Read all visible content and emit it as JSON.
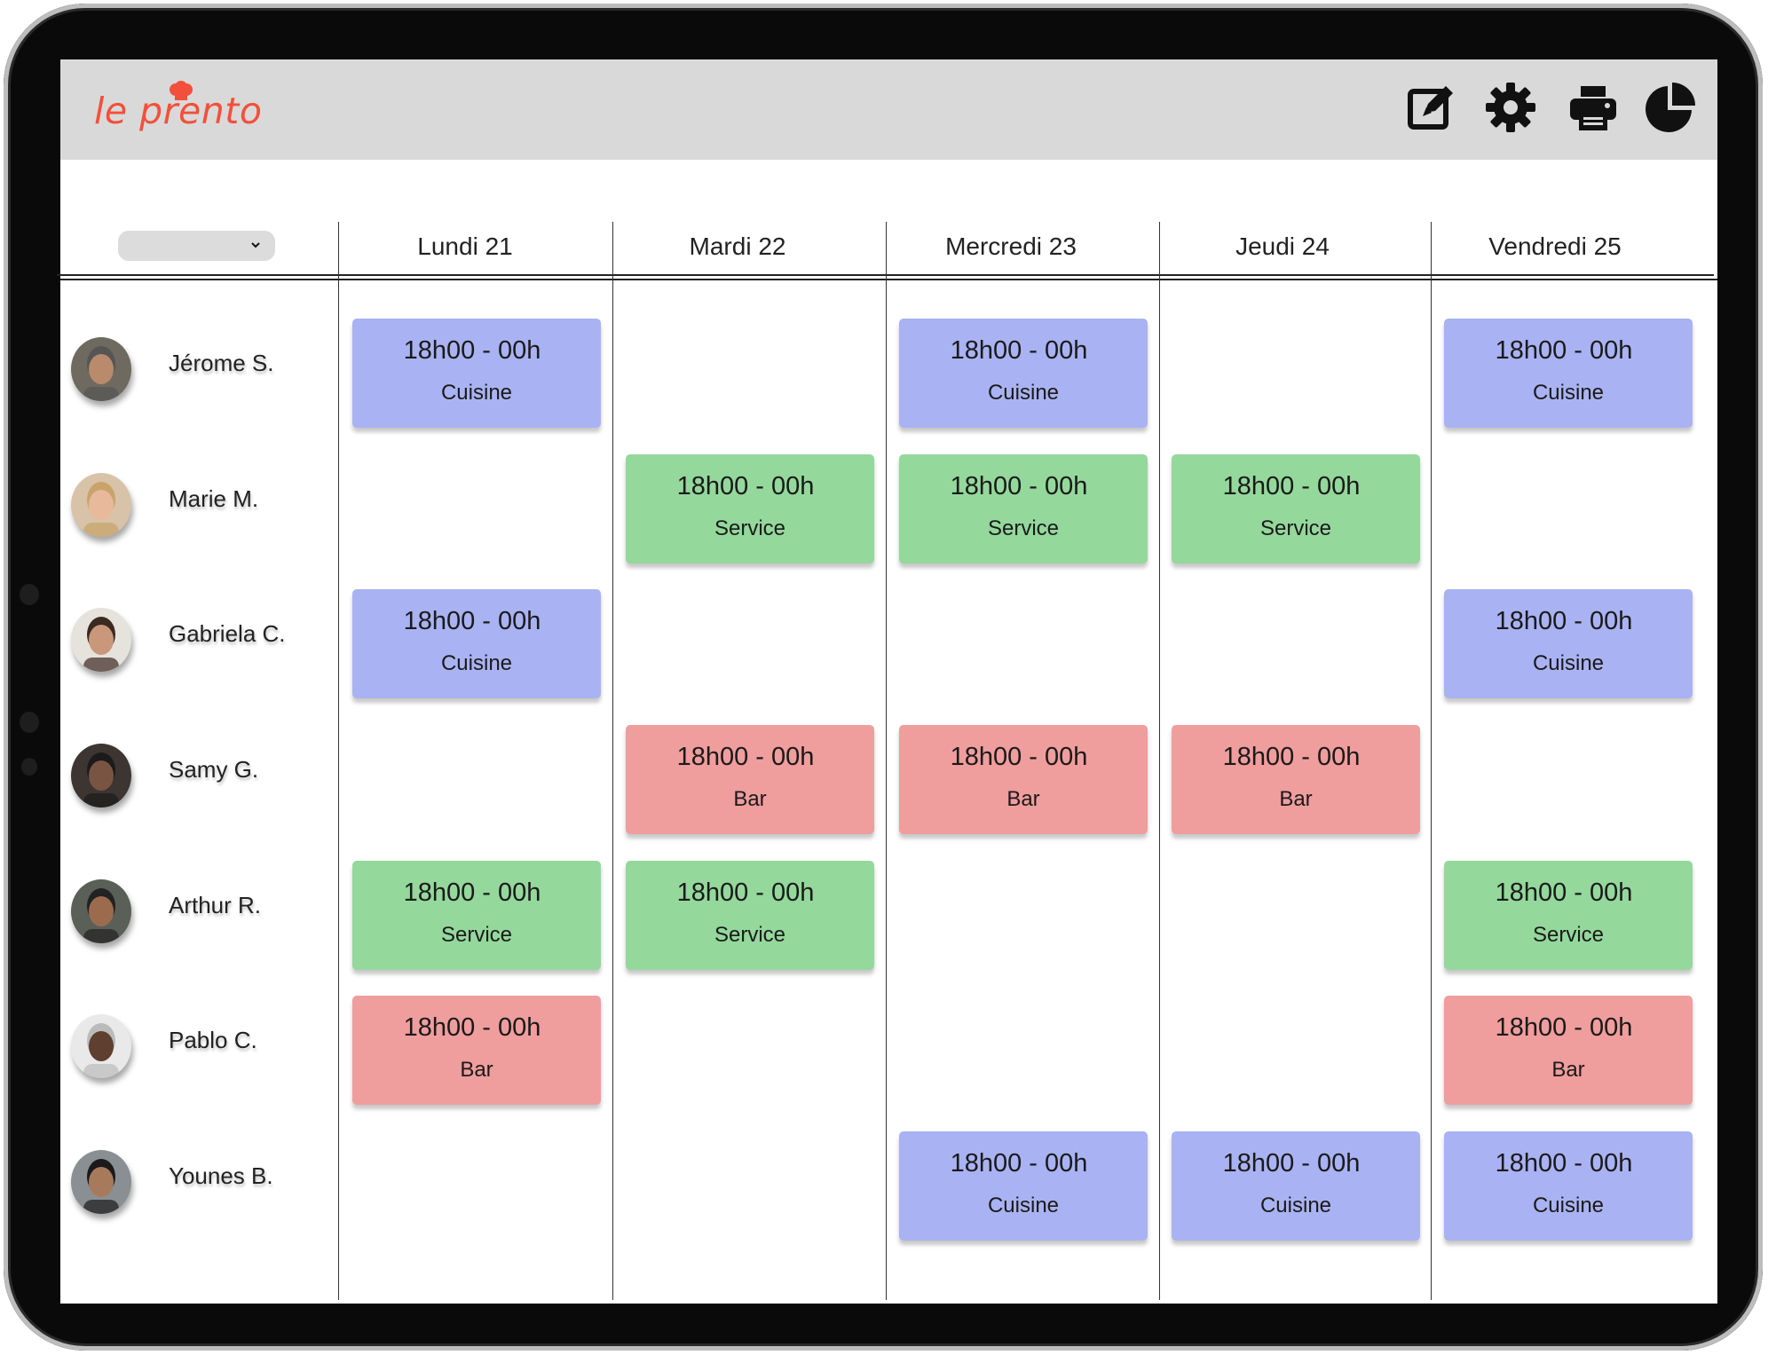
{
  "app": {
    "logo_text": "le prento"
  },
  "toolbar": {
    "icons": [
      "edit-icon",
      "gear-icon",
      "printer-icon",
      "pie-chart-icon"
    ]
  },
  "filter": {
    "selected": ""
  },
  "days": [
    "Lundi 21",
    "Mardi 22",
    "Mercredi 23",
    "Jeudi 24",
    "Vendredi 25"
  ],
  "employees": [
    {
      "name": "Jérome S.",
      "shifts": [
        {
          "day": 0,
          "time": "18h00 - 00h",
          "role": "Cuisine"
        },
        {
          "day": 2,
          "time": "18h00 - 00h",
          "role": "Cuisine"
        },
        {
          "day": 4,
          "time": "18h00 - 00h",
          "role": "Cuisine"
        }
      ]
    },
    {
      "name": "Marie M.",
      "shifts": [
        {
          "day": 1,
          "time": "18h00 - 00h",
          "role": "Service"
        },
        {
          "day": 2,
          "time": "18h00 - 00h",
          "role": "Service"
        },
        {
          "day": 3,
          "time": "18h00 - 00h",
          "role": "Service"
        }
      ]
    },
    {
      "name": "Gabriela C.",
      "shifts": [
        {
          "day": 0,
          "time": "18h00 - 00h",
          "role": "Cuisine"
        },
        {
          "day": 4,
          "time": "18h00 - 00h",
          "role": "Cuisine"
        }
      ]
    },
    {
      "name": "Samy G.",
      "shifts": [
        {
          "day": 1,
          "time": "18h00 - 00h",
          "role": "Bar"
        },
        {
          "day": 2,
          "time": "18h00 - 00h",
          "role": "Bar"
        },
        {
          "day": 3,
          "time": "18h00 - 00h",
          "role": "Bar"
        }
      ]
    },
    {
      "name": "Arthur R.",
      "shifts": [
        {
          "day": 0,
          "time": "18h00 - 00h",
          "role": "Service"
        },
        {
          "day": 1,
          "time": "18h00 - 00h",
          "role": "Service"
        },
        {
          "day": 4,
          "time": "18h00 - 00h",
          "role": "Service"
        }
      ]
    },
    {
      "name": "Pablo C.",
      "shifts": [
        {
          "day": 0,
          "time": "18h00 - 00h",
          "role": "Bar"
        },
        {
          "day": 4,
          "time": "18h00 - 00h",
          "role": "Bar"
        }
      ]
    },
    {
      "name": "Younes B.",
      "shifts": [
        {
          "day": 2,
          "time": "18h00 - 00h",
          "role": "Cuisine"
        },
        {
          "day": 3,
          "time": "18h00 - 00h",
          "role": "Cuisine"
        },
        {
          "day": 4,
          "time": "18h00 - 00h",
          "role": "Cuisine"
        }
      ]
    }
  ],
  "role_colors": {
    "Cuisine": "#a9b2f2",
    "Service": "#94d89c",
    "Bar": "#f09d9d"
  },
  "colors": {
    "brand": "#f2503a",
    "topbar": "#d9d9d9"
  }
}
